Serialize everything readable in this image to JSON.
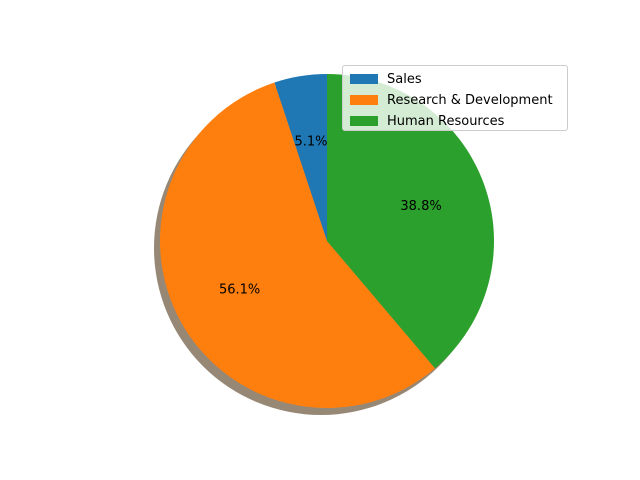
{
  "chart_data": {
    "type": "pie",
    "title": "",
    "slices": [
      {
        "label": "Sales",
        "value": 5.1,
        "pct_label": "5.1%",
        "color": "#1f77b4"
      },
      {
        "label": "Research & Development",
        "value": 56.1,
        "pct_label": "56.1%",
        "color": "#ff7f0e"
      },
      {
        "label": "Human Resources",
        "value": 38.8,
        "pct_label": "38.8%",
        "color": "#2ca02c"
      }
    ],
    "shadow": true,
    "legend": "top-right"
  }
}
